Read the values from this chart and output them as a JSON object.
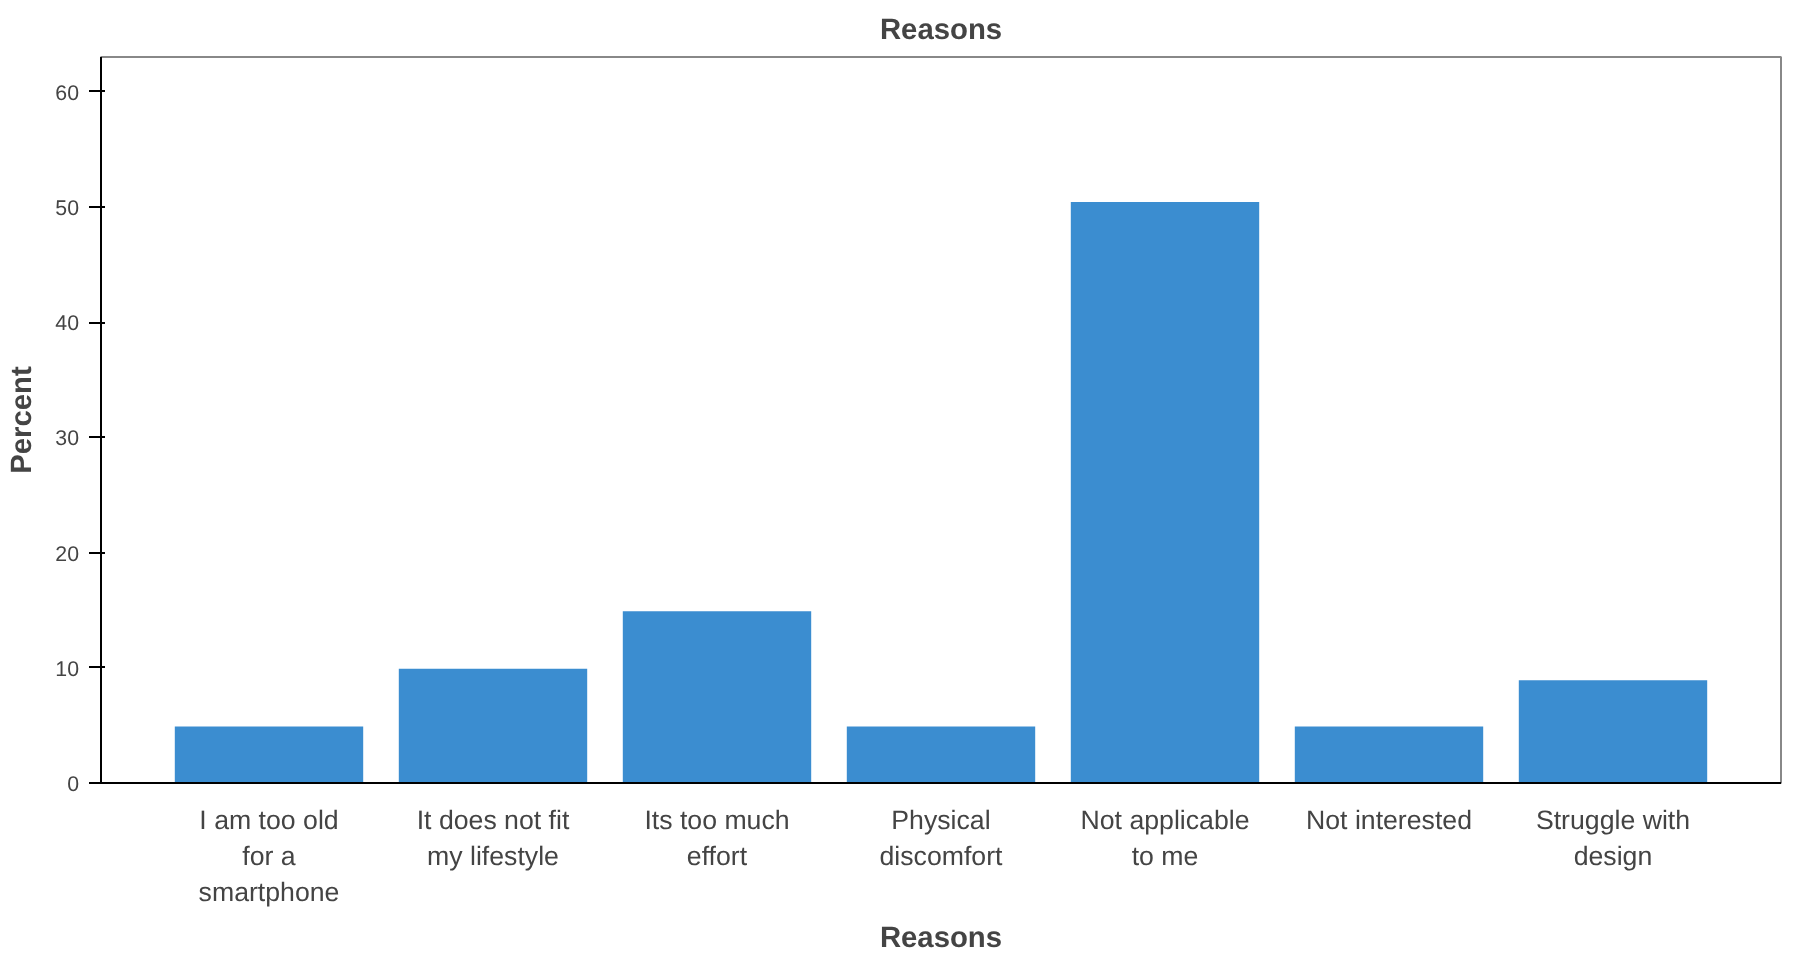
{
  "chart_data": {
    "type": "bar",
    "title": "Reasons",
    "xlabel": "Reasons",
    "ylabel": "Percent",
    "categories": [
      "I am too old for a smartphone",
      "It does not fit my lifestyle",
      "Its too much effort",
      "Physical discomfort",
      "Not applicable to me",
      "Not interested",
      "Struggle with design"
    ],
    "values": [
      5,
      10,
      15,
      5,
      50.5,
      5,
      9
    ],
    "color": "#3b8dd0",
    "ylim": [
      0,
      63
    ],
    "yticks": [
      0,
      10,
      20,
      30,
      40,
      50,
      60
    ],
    "grid": false
  }
}
